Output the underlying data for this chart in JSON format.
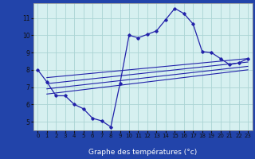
{
  "xlabel": "Graphe des températures (°c)",
  "background_color": "#cceeff",
  "plot_bg_color": "#d6f0f0",
  "grid_color": "#aad4d4",
  "line_color": "#2222aa",
  "label_bar_color": "#2244aa",
  "label_text_color": "#ffffff",
  "xlim": [
    -0.5,
    23.5
  ],
  "ylim": [
    4.5,
    11.85
  ],
  "xticks": [
    0,
    1,
    2,
    3,
    4,
    5,
    6,
    7,
    8,
    9,
    10,
    11,
    12,
    13,
    14,
    15,
    16,
    17,
    18,
    19,
    20,
    21,
    22,
    23
  ],
  "yticks": [
    5,
    6,
    7,
    8,
    9,
    10,
    11
  ],
  "main_x": [
    0,
    1,
    2,
    3,
    4,
    5,
    6,
    7,
    8,
    9,
    10,
    11,
    12,
    13,
    14,
    15,
    16,
    17,
    18,
    19,
    20,
    21,
    22,
    23
  ],
  "main_y": [
    8.0,
    7.3,
    6.5,
    6.5,
    6.0,
    5.75,
    5.2,
    5.05,
    4.7,
    7.2,
    10.0,
    9.85,
    10.05,
    10.25,
    10.9,
    11.55,
    11.25,
    10.65,
    9.05,
    9.0,
    8.65,
    8.3,
    8.4,
    8.65
  ],
  "flat_lines": [
    {
      "x": [
        1,
        23
      ],
      "y": [
        7.55,
        8.65
      ]
    },
    {
      "x": [
        1,
        23
      ],
      "y": [
        7.2,
        8.45
      ]
    },
    {
      "x": [
        1,
        23
      ],
      "y": [
        6.9,
        8.2
      ]
    },
    {
      "x": [
        1,
        23
      ],
      "y": [
        6.6,
        8.0
      ]
    }
  ]
}
